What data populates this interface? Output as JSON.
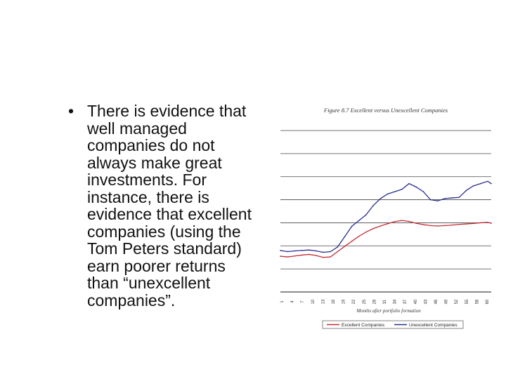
{
  "slide": {
    "bullet_symbol": "•",
    "bullet_text": "There is evidence that\nwell managed\ncompanies do not\nalways make great\ninvestments. For\ninstance, there is\nevidence that excellent\ncompanies (using the\nTom Peters standard)\nearn poorer returns\nthan “unexcellent\ncompanies”."
  },
  "chart_data": {
    "type": "line",
    "title": "Figure 8.7 Excellent versus Unexcellent Companies",
    "xlabel": "Months after portfolio formation",
    "ylabel": "",
    "grid": true,
    "legend_position": "bottom",
    "x": [
      1,
      3,
      5,
      7,
      9,
      11,
      13,
      15,
      17,
      19,
      21,
      23,
      25,
      27,
      29,
      31,
      33,
      35,
      37,
      39,
      41,
      43,
      45,
      47,
      49,
      51,
      53,
      55,
      57,
      59,
      60
    ],
    "x_tick_labels": [
      "1",
      "4",
      "7",
      "10",
      "13",
      "16",
      "19",
      "22",
      "25",
      "28",
      "31",
      "34",
      "37",
      "40",
      "43",
      "46",
      "49",
      "52",
      "55",
      "58",
      "60"
    ],
    "ylim": [
      0,
      7
    ],
    "series": [
      {
        "name": "Excellent Companies",
        "color": "#c0303a",
        "values": [
          1.55,
          1.52,
          1.56,
          1.6,
          1.63,
          1.58,
          1.5,
          1.52,
          1.75,
          1.98,
          2.2,
          2.42,
          2.6,
          2.75,
          2.86,
          2.96,
          3.05,
          3.1,
          3.06,
          2.98,
          2.92,
          2.88,
          2.86,
          2.88,
          2.9,
          2.93,
          2.95,
          2.97,
          3.0,
          3.02,
          2.98
        ]
      },
      {
        "name": "Unexcellent Companies",
        "color": "#2b2f8f",
        "values": [
          1.8,
          1.75,
          1.78,
          1.8,
          1.82,
          1.78,
          1.72,
          1.75,
          1.95,
          2.4,
          2.85,
          3.1,
          3.35,
          3.75,
          4.05,
          4.25,
          4.35,
          4.45,
          4.7,
          4.55,
          4.35,
          4.0,
          3.95,
          4.05,
          4.08,
          4.1,
          4.4,
          4.6,
          4.7,
          4.8,
          4.7
        ]
      }
    ]
  }
}
